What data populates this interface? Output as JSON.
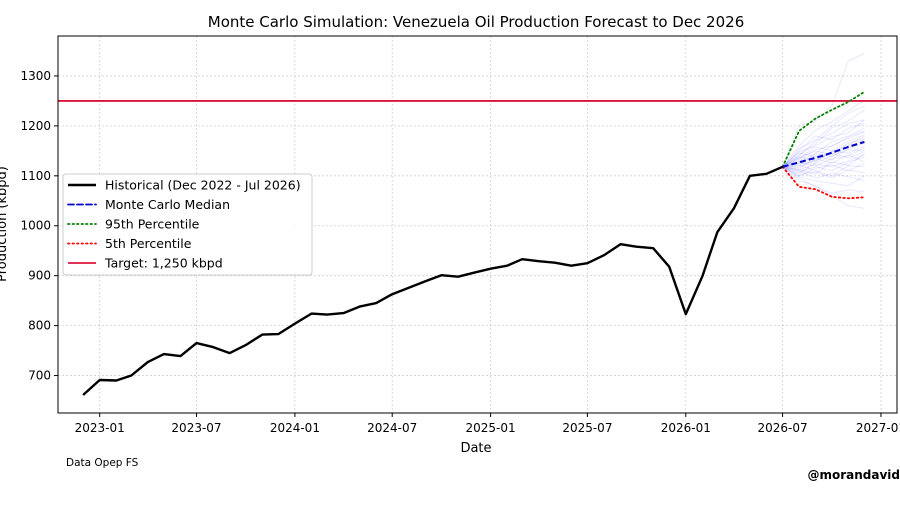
{
  "chart_data": {
    "type": "line",
    "title": "Monte Carlo Simulation: Venezuela Oil Production Forecast to Dec 2026",
    "xlabel": "Date",
    "ylabel": "Production (kbpd)",
    "x_range": [
      "2022-10-15",
      "2027-01-31"
    ],
    "ylim": [
      625,
      1380
    ],
    "grid": true,
    "legend_placement": "center-left",
    "x_ticks": [
      "2023-01",
      "2023-07",
      "2024-01",
      "2024-07",
      "2025-01",
      "2025-07",
      "2026-01",
      "2026-07",
      "2027-01"
    ],
    "y_ticks": [
      700,
      800,
      900,
      1000,
      1100,
      1200,
      1300
    ],
    "legend": [
      {
        "label": "Historical (Dec 2022 - Jul 2026)",
        "color": "#000000",
        "style": "solid"
      },
      {
        "label": "Monte Carlo Median",
        "color": "#0000cc",
        "style": "dashed"
      },
      {
        "label": "95th Percentile",
        "color": "#008000",
        "style": "dotted"
      },
      {
        "label": "5th Percentile",
        "color": "#ff0000",
        "style": "dotted"
      },
      {
        "label": "Target: 1,250 kbpd",
        "color": "#dc143c",
        "style": "solid"
      }
    ],
    "target": 1250,
    "historical": {
      "x": [
        "2022-12",
        "2023-01",
        "2023-02",
        "2023-03",
        "2023-04",
        "2023-05",
        "2023-06",
        "2023-07",
        "2023-08",
        "2023-09",
        "2023-10",
        "2023-11",
        "2023-12",
        "2024-01",
        "2024-02",
        "2024-03",
        "2024-04",
        "2024-05",
        "2024-06",
        "2024-07",
        "2024-08",
        "2024-09",
        "2024-10",
        "2024-11",
        "2024-12",
        "2025-01",
        "2025-02",
        "2025-03",
        "2025-04",
        "2025-05",
        "2025-06",
        "2025-07",
        "2025-08",
        "2025-09",
        "2025-10",
        "2025-11",
        "2025-12",
        "2026-01",
        "2026-02",
        "2026-03",
        "2026-04",
        "2026-05",
        "2026-06",
        "2026-07"
      ],
      "y": [
        661,
        691,
        690,
        700,
        727,
        743,
        739,
        765,
        757,
        745,
        761,
        782,
        783,
        804,
        824,
        822,
        825,
        838,
        845,
        863,
        876,
        889,
        901,
        898,
        906,
        914,
        920,
        933,
        929,
        926,
        920,
        925,
        941,
        963,
        958,
        955,
        918,
        823,
        899,
        987,
        1035,
        1100,
        1104,
        1118
      ]
    },
    "forecast_x": [
      "2026-07",
      "2026-08",
      "2026-09",
      "2026-10",
      "2026-11",
      "2026-12"
    ],
    "median": [
      1118,
      1127,
      1136,
      1146,
      1158,
      1168
    ],
    "p95": [
      1118,
      1190,
      1215,
      1232,
      1248,
      1268
    ],
    "p5": [
      1118,
      1078,
      1073,
      1058,
      1055,
      1057
    ],
    "simulation_paths": [
      [
        1118,
        1140,
        1170,
        1185,
        1205,
        1212
      ],
      [
        1118,
        1108,
        1118,
        1110,
        1127,
        1138
      ],
      [
        1118,
        1133,
        1152,
        1160,
        1178,
        1190
      ],
      [
        1118,
        1098,
        1090,
        1085,
        1080,
        1100
      ],
      [
        1118,
        1150,
        1180,
        1172,
        1195,
        1205
      ],
      [
        1118,
        1125,
        1128,
        1150,
        1145,
        1160
      ],
      [
        1118,
        1112,
        1104,
        1128,
        1121,
        1144
      ],
      [
        1118,
        1160,
        1192,
        1208,
        1230,
        1252
      ],
      [
        1118,
        1120,
        1145,
        1138,
        1160,
        1172
      ],
      [
        1118,
        1095,
        1078,
        1065,
        1072,
        1068
      ],
      [
        1118,
        1138,
        1130,
        1148,
        1162,
        1180
      ],
      [
        1118,
        1115,
        1135,
        1125,
        1142,
        1128
      ],
      [
        1118,
        1142,
        1164,
        1196,
        1210,
        1232
      ],
      [
        1118,
        1122,
        1110,
        1100,
        1120,
        1118
      ],
      [
        1118,
        1105,
        1126,
        1140,
        1152,
        1150
      ],
      [
        1118,
        1130,
        1145,
        1168,
        1180,
        1196
      ],
      [
        1118,
        1110,
        1095,
        1105,
        1098,
        1090
      ],
      [
        1118,
        1148,
        1160,
        1178,
        1186,
        1212
      ],
      [
        1118,
        1126,
        1120,
        1134,
        1140,
        1156
      ],
      [
        1118,
        1135,
        1158,
        1150,
        1170,
        1182
      ],
      [
        1118,
        1100,
        1115,
        1122,
        1110,
        1125
      ],
      [
        1118,
        1155,
        1172,
        1200,
        1225,
        1240
      ],
      [
        1118,
        1118,
        1132,
        1145,
        1136,
        1148
      ],
      [
        1118,
        1128,
        1140,
        1132,
        1155,
        1165
      ],
      [
        1118,
        1200,
        1210,
        1240,
        1330,
        1345
      ],
      [
        1118,
        1090,
        1080,
        1060,
        1040,
        1035
      ],
      [
        1118,
        1146,
        1138,
        1160,
        1175,
        1188
      ],
      [
        1118,
        1112,
        1124,
        1118,
        1130,
        1142
      ],
      [
        1118,
        1136,
        1150,
        1142,
        1166,
        1174
      ],
      [
        1118,
        1102,
        1108,
        1096,
        1112,
        1106
      ]
    ]
  },
  "notes": {
    "source": "Data Opep FS",
    "credit": "@morandavid"
  }
}
